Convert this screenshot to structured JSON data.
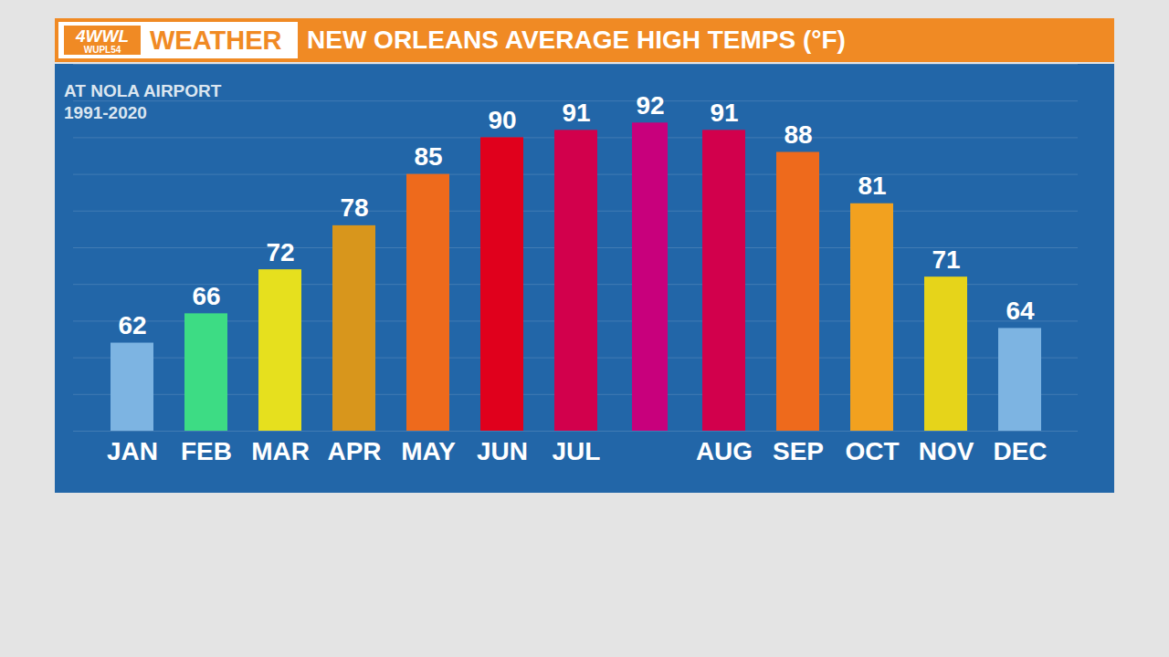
{
  "chart_data": {
    "type": "bar",
    "logo": "4WWL",
    "logo_sub": "WUPL54",
    "section": "WEATHER",
    "title": "NEW ORLEANS AVERAGE HIGH TEMPS (°F)",
    "subtitle": [
      "AT NOLA AIRPORT",
      "1991-2020"
    ],
    "categories": [
      "JAN",
      "FEB",
      "MAR",
      "APR",
      "MAY",
      "JUN",
      "JUL",
      null,
      "AUG",
      "SEP",
      "OCT",
      "NOV",
      "DEC"
    ],
    "values": [
      62,
      66,
      72,
      78,
      85,
      90,
      91,
      92,
      91,
      88,
      81,
      71,
      64
    ],
    "colors": [
      "#7db4e2",
      "#3ddc84",
      "#e6e01e",
      "#d8961c",
      "#ee6a1c",
      "#e0001c",
      "#d2004c",
      "#c8007c",
      "#d2004c",
      "#ee6a1c",
      "#f2a11f",
      "#e6d41a",
      "#7db4e2"
    ],
    "ylim": [
      50,
      100
    ],
    "yticks": [
      50,
      55,
      60,
      65,
      70,
      75,
      80,
      85,
      90,
      95,
      100
    ],
    "grid": true,
    "data_labels": true,
    "tick_labels": "x"
  }
}
